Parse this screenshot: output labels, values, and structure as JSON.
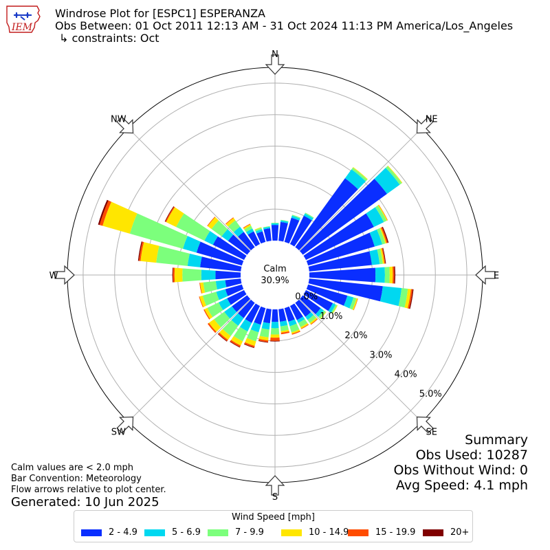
{
  "header": {
    "logo_text": "IEM",
    "title": "Windrose Plot for [ESPC1] ESPERANZA",
    "subtitle": "Obs Between: 01 Oct 2011 12:13 AM - 31 Oct 2024 11:13 PM America/Los_Angeles",
    "constraint": "↳ constraints: Oct"
  },
  "colors": {
    "bins": [
      "#0a2eff",
      "#00d8f0",
      "#7cff7c",
      "#ffe600",
      "#ff4c00",
      "#800000"
    ],
    "grid": "#b0b0b0",
    "arrow_fill": "#ffffff",
    "arrow_stroke": "#333333"
  },
  "chart_data": {
    "type": "windrose",
    "directions": [
      0,
      10,
      20,
      30,
      40,
      50,
      60,
      70,
      80,
      90,
      100,
      110,
      120,
      130,
      140,
      150,
      160,
      170,
      180,
      190,
      200,
      210,
      220,
      230,
      240,
      250,
      260,
      270,
      280,
      290,
      300,
      310,
      320,
      330,
      340,
      350
    ],
    "speed_bins": [
      "2 - 4.9",
      "5 - 6.9",
      "7 - 9.9",
      "10 - 14.9",
      "15 - 19.9",
      "20+"
    ],
    "values": [
      [
        0.5,
        0.05,
        0.02,
        0,
        0,
        0
      ],
      [
        0.6,
        0.05,
        0.02,
        0,
        0,
        0
      ],
      [
        0.8,
        0.07,
        0.03,
        0,
        0,
        0
      ],
      [
        1.0,
        0.08,
        0.03,
        0,
        0,
        0
      ],
      [
        2.7,
        0.35,
        0.07,
        0.02,
        0,
        0
      ],
      [
        3.3,
        0.5,
        0.08,
        0.02,
        0,
        0
      ],
      [
        2.4,
        0.35,
        0.1,
        0.03,
        0.01,
        0
      ],
      [
        2.2,
        0.25,
        0.1,
        0.04,
        0.04,
        0.03
      ],
      [
        2.0,
        0.25,
        0.1,
        0.05,
        0.03,
        0.02
      ],
      [
        2.1,
        0.3,
        0.15,
        0.1,
        0.05,
        0.03
      ],
      [
        2.35,
        0.6,
        0.2,
        0.1,
        0.05,
        0.03
      ],
      [
        1.3,
        0.2,
        0.1,
        0.04,
        0.01,
        0
      ],
      [
        0.95,
        0.1,
        0.05,
        0.02,
        0,
        0
      ],
      [
        0.7,
        0.12,
        0.08,
        0.02,
        0,
        0
      ],
      [
        0.55,
        0.12,
        0.12,
        0.05,
        0.02,
        0
      ],
      [
        0.5,
        0.1,
        0.15,
        0.05,
        0.02,
        0
      ],
      [
        0.45,
        0.15,
        0.2,
        0.05,
        0.03,
        0
      ],
      [
        0.4,
        0.15,
        0.15,
        0.05,
        0.05,
        0
      ],
      [
        0.4,
        0.2,
        0.2,
        0.1,
        0.1,
        0.02
      ],
      [
        0.45,
        0.2,
        0.25,
        0.1,
        0.05,
        0.02
      ],
      [
        0.55,
        0.25,
        0.3,
        0.15,
        0.05,
        0.02
      ],
      [
        0.6,
        0.3,
        0.35,
        0.15,
        0.05,
        0.02
      ],
      [
        0.6,
        0.3,
        0.4,
        0.15,
        0.05,
        0.02
      ],
      [
        0.6,
        0.3,
        0.4,
        0.2,
        0.05,
        0
      ],
      [
        0.6,
        0.3,
        0.4,
        0.1,
        0.03,
        0
      ],
      [
        0.55,
        0.3,
        0.45,
        0.1,
        0.02,
        0
      ],
      [
        0.5,
        0.3,
        0.4,
        0.1,
        0.02,
        0
      ],
      [
        0.8,
        0.45,
        0.6,
        0.25,
        0.05,
        0.02
      ],
      [
        1.3,
        0.4,
        1.0,
        0.5,
        0.05,
        0.03
      ],
      [
        1.5,
        0.45,
        1.75,
        0.9,
        0.1,
        0.05
      ],
      [
        1.1,
        0.3,
        1.0,
        0.35,
        0.03,
        0.02
      ],
      [
        0.75,
        0.25,
        0.4,
        0.15,
        0.02,
        0
      ],
      [
        0.6,
        0.2,
        0.25,
        0.1,
        0.02,
        0
      ],
      [
        0.45,
        0.1,
        0.1,
        0.05,
        0.02,
        0
      ],
      [
        0.35,
        0.07,
        0.05,
        0.02,
        0,
        0
      ],
      [
        0.4,
        0.05,
        0.02,
        0,
        0,
        0
      ]
    ],
    "calm_label": "Calm",
    "calm_percent": "30.9%",
    "rlim": [
      0,
      5.5
    ],
    "rings": [
      1,
      2,
      3,
      4,
      5
    ],
    "radial_labels": [
      "0.0%",
      "1.0%",
      "2.0%",
      "3.0%",
      "4.0%",
      "5.0%"
    ],
    "compass": [
      "N",
      "NE",
      "E",
      "SE",
      "S",
      "SW",
      "W",
      "NW"
    ],
    "legend_title": "Wind Speed [mph]"
  },
  "footer": {
    "calm_note": "Calm values are < 2.0 mph",
    "bar_convention": "Bar Convention: Meteorology",
    "flow_note": "Flow arrows relative to plot center.",
    "generated": "Generated: 10 Jun 2025"
  },
  "summary": {
    "heading": "Summary",
    "obs_used": "Obs Used: 10287",
    "obs_without_wind": "Obs Without Wind: 0",
    "avg_speed": "Avg Speed: 4.1 mph"
  }
}
